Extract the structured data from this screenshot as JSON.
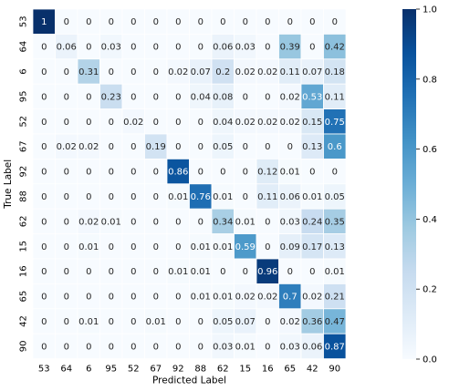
{
  "chart_data": {
    "type": "heatmap",
    "title": "",
    "xlabel": "Predicted Label",
    "ylabel": "True Label",
    "x_categories": [
      "53",
      "64",
      "6",
      "95",
      "52",
      "67",
      "92",
      "88",
      "62",
      "15",
      "16",
      "65",
      "42",
      "90"
    ],
    "y_categories": [
      "53",
      "64",
      "6",
      "95",
      "52",
      "67",
      "92",
      "88",
      "62",
      "15",
      "16",
      "65",
      "42",
      "90"
    ],
    "values": [
      [
        "1",
        "0",
        "0",
        "0",
        "0",
        "0",
        "0",
        "0",
        "0",
        "0",
        "0",
        "0",
        "0",
        "0"
      ],
      [
        "0",
        "0.06",
        "0",
        "0.03",
        "0",
        "0",
        "0",
        "0",
        "0.06",
        "0.03",
        "0",
        "0.39",
        "0",
        "0.42"
      ],
      [
        "0",
        "0",
        "0.31",
        "0",
        "0",
        "0",
        "0.02",
        "0.07",
        "0.2",
        "0.02",
        "0.02",
        "0.11",
        "0.07",
        "0.18"
      ],
      [
        "0",
        "0",
        "0",
        "0.23",
        "0",
        "0",
        "0",
        "0.04",
        "0.08",
        "0",
        "0",
        "0.02",
        "0.53",
        "0.11"
      ],
      [
        "0",
        "0",
        "0",
        "0",
        "0.02",
        "0",
        "0",
        "0",
        "0.04",
        "0.02",
        "0.02",
        "0.02",
        "0.15",
        "0.75"
      ],
      [
        "0",
        "0.02",
        "0.02",
        "0",
        "0",
        "0.19",
        "0",
        "0",
        "0.05",
        "0",
        "0",
        "0",
        "0.13",
        "0.6"
      ],
      [
        "0",
        "0",
        "0",
        "0",
        "0",
        "0",
        "0.86",
        "0",
        "0",
        "0",
        "0.12",
        "0.01",
        "0",
        "0"
      ],
      [
        "0",
        "0",
        "0",
        "0",
        "0",
        "0",
        "0.01",
        "0.76",
        "0.01",
        "0",
        "0.11",
        "0.06",
        "0.01",
        "0.05"
      ],
      [
        "0",
        "0",
        "0.02",
        "0.01",
        "0",
        "0",
        "0",
        "0",
        "0.34",
        "0.01",
        "0",
        "0.03",
        "0.24",
        "0.35"
      ],
      [
        "0",
        "0",
        "0.01",
        "0",
        "0",
        "0",
        "0",
        "0.01",
        "0.01",
        "0.59",
        "0",
        "0.09",
        "0.17",
        "0.13"
      ],
      [
        "0",
        "0",
        "0",
        "0",
        "0",
        "0",
        "0.01",
        "0.01",
        "0",
        "0",
        "0.96",
        "0",
        "0",
        "0.01"
      ],
      [
        "0",
        "0",
        "0",
        "0",
        "0",
        "0",
        "0",
        "0.01",
        "0.01",
        "0.02",
        "0.02",
        "0.7",
        "0.02",
        "0.21"
      ],
      [
        "0",
        "0",
        "0.01",
        "0",
        "0",
        "0.01",
        "0",
        "0",
        "0.05",
        "0.07",
        "0",
        "0.02",
        "0.36",
        "0.47"
      ],
      [
        "0",
        "0",
        "0",
        "0",
        "0",
        "0",
        "0",
        "0",
        "0.03",
        "0.01",
        "0",
        "0.03",
        "0.06",
        "0.87"
      ]
    ],
    "colorbar": {
      "range": [
        0,
        1
      ],
      "ticks": [
        "0.0",
        "0.2",
        "0.4",
        "0.6",
        "0.8",
        "1.0"
      ],
      "colormap": "Blues"
    },
    "grid": true,
    "legend": "colorbar-right"
  }
}
